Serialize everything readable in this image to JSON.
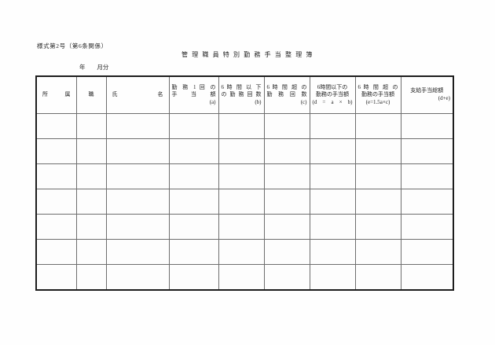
{
  "document": {
    "form_number": "様式第2号（第6条関係）",
    "title": "管 理 職 員 特 別 勤 務 手 当 整 理 簿",
    "period": {
      "year_label": "年",
      "month_label": "月分"
    }
  },
  "table": {
    "body_row_count": 7,
    "columns": [
      {
        "id": "affiliation",
        "lines": [
          "所　属"
        ]
      },
      {
        "id": "position",
        "lines": [
          "職"
        ]
      },
      {
        "id": "name",
        "lines": [
          "氏　名"
        ]
      },
      {
        "id": "allowance-per-duty",
        "lines": [
          "勤 務 1 回 の",
          "手　当　額",
          "(a)"
        ]
      },
      {
        "id": "count-6h-or-less",
        "lines": [
          "6 時 間 以 下",
          "の 勤 務 回 数",
          "(b)"
        ]
      },
      {
        "id": "count-over-6h",
        "lines": [
          "6 時 間 超 の",
          "勤 務 回 数",
          "(c)"
        ]
      },
      {
        "id": "allowance-6h-or-less",
        "lines": [
          "6時間以下の",
          "勤務の手当額",
          "(d = a × b)"
        ]
      },
      {
        "id": "allowance-over-6h",
        "lines": [
          "6 時 間 超 の",
          "勤務の手当額",
          "(e=1.5a×c)"
        ]
      },
      {
        "id": "total-paid",
        "lines": [
          "支給手当総額",
          "(d+e)"
        ]
      }
    ]
  }
}
